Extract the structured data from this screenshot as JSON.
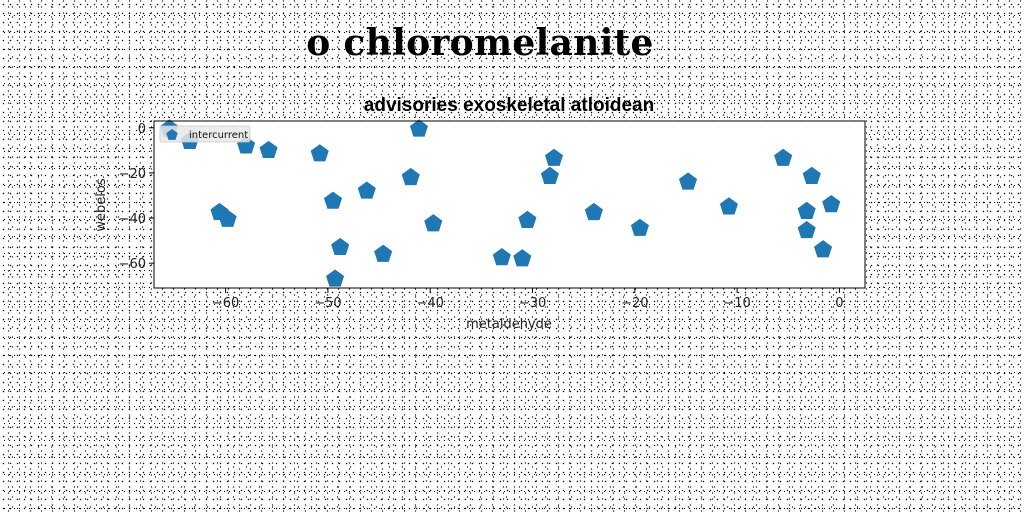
{
  "page": {
    "title": "o chloromelanite"
  },
  "chart_data": {
    "type": "scatter",
    "title": "advisories exoskeletal atloidean",
    "xlabel": "metaldehyde",
    "ylabel": "webelos",
    "xlim": [
      -67,
      2.5
    ],
    "ylim": [
      -71,
      3
    ],
    "xticks": [
      -60,
      -50,
      -40,
      -30,
      -20,
      -10,
      0
    ],
    "yticks": [
      0,
      -20,
      -40,
      -60
    ],
    "grid": false,
    "legend_position": "top-left",
    "marker": "pentagon",
    "color": "#1f77b4",
    "series": [
      {
        "name": "intercurrent",
        "points": [
          {
            "x": -65.5,
            "y": -0.5
          },
          {
            "x": -63.5,
            "y": -6
          },
          {
            "x": -58,
            "y": -8
          },
          {
            "x": -55.8,
            "y": -10
          },
          {
            "x": -60.6,
            "y": -37.5
          },
          {
            "x": -59.8,
            "y": -40.5
          },
          {
            "x": -50.8,
            "y": -11.5
          },
          {
            "x": -49.5,
            "y": -32.5
          },
          {
            "x": -48.8,
            "y": -53
          },
          {
            "x": -49.3,
            "y": -67
          },
          {
            "x": -46.2,
            "y": -28
          },
          {
            "x": -44.6,
            "y": -56
          },
          {
            "x": -41.9,
            "y": -22
          },
          {
            "x": -41.1,
            "y": -0.5
          },
          {
            "x": -39.7,
            "y": -42.5
          },
          {
            "x": -33,
            "y": -57.5
          },
          {
            "x": -31,
            "y": -58
          },
          {
            "x": -30.5,
            "y": -41
          },
          {
            "x": -27.9,
            "y": -13.5
          },
          {
            "x": -28.3,
            "y": -21.5
          },
          {
            "x": -24,
            "y": -37.5
          },
          {
            "x": -19.5,
            "y": -44.5
          },
          {
            "x": -14.8,
            "y": -24
          },
          {
            "x": -10.8,
            "y": -35
          },
          {
            "x": -5.5,
            "y": -13.5
          },
          {
            "x": -2.7,
            "y": -21.5
          },
          {
            "x": -3.2,
            "y": -37
          },
          {
            "x": -3.2,
            "y": -45.5
          },
          {
            "x": -1.6,
            "y": -54
          },
          {
            "x": -0.8,
            "y": -34
          }
        ]
      }
    ]
  }
}
